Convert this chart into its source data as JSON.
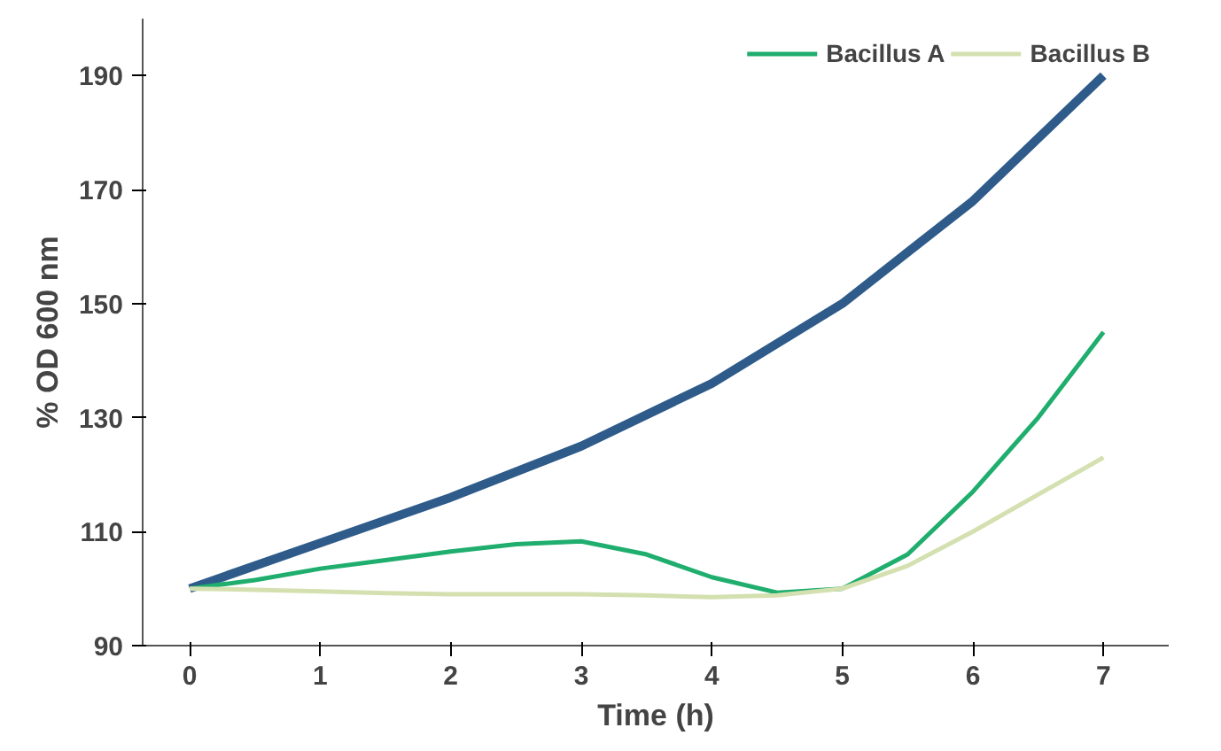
{
  "chart_data": {
    "type": "line",
    "xlabel": "Time (h)",
    "ylabel": "% OD 600 nm",
    "x": [
      0,
      1,
      2,
      3,
      4,
      5,
      6,
      7
    ],
    "xlim": [
      -0.36,
      7.5
    ],
    "xticks": [
      0,
      1,
      2,
      3,
      4,
      5,
      6,
      7
    ],
    "ylim": [
      90,
      200
    ],
    "yticks": [
      90,
      110,
      130,
      150,
      170,
      190
    ],
    "grid": false,
    "legend": "top right",
    "marker": "none",
    "line_style": "solid",
    "series": [
      {
        "color": "#2e5b8a",
        "values": [
          100,
          108,
          116,
          125,
          136,
          150,
          168,
          190
        ]
      },
      {
        "name": "Bacillus A",
        "color": "#1fae6e",
        "x": [
          0,
          0.5,
          1,
          1.5,
          2,
          2.5,
          3,
          3.5,
          4,
          4.5,
          5,
          5.5,
          6,
          6.5,
          7
        ],
        "values": [
          100,
          101.5,
          103.5,
          105,
          106.5,
          107.8,
          108.3,
          106,
          102,
          99.3,
          100,
          106,
          117,
          130,
          145
        ]
      },
      {
        "name": "Bacillus B",
        "color": "#d4e0b0",
        "x": [
          0,
          0.5,
          1,
          1.5,
          2,
          2.5,
          3,
          3.5,
          4,
          4.5,
          5,
          5.5,
          6,
          6.5,
          7
        ],
        "values": [
          100,
          99.8,
          99.5,
          99.2,
          99,
          99,
          99,
          98.8,
          98.5,
          98.8,
          100,
          104,
          110,
          116.5,
          123
        ]
      }
    ]
  }
}
